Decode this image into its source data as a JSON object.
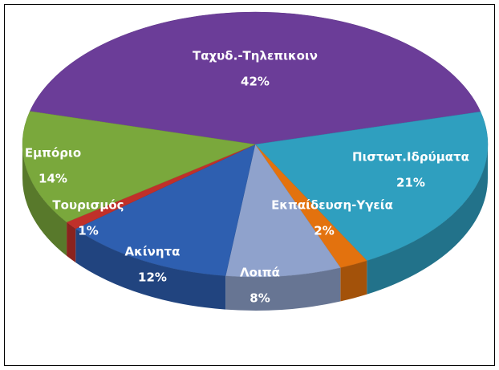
{
  "chart_data": {
    "type": "pie",
    "3d": true,
    "categories": [
      "Ταχυδ.-Τηλεπικοιν",
      "Πιστωτ.Ιδρύματα",
      "Εκπαίδευση-Υγεία",
      "Λοιπά",
      "Ακίνητα",
      "Τουρισμός",
      "Εμπόριο"
    ],
    "values": [
      42,
      21,
      2,
      8,
      12,
      1,
      14
    ],
    "value_labels": [
      "42%",
      "21%",
      "2%",
      "8%",
      "12%",
      "1%",
      "14%"
    ],
    "colors": [
      "#6b3d98",
      "#2f9fbf",
      "#e3720e",
      "#8fa2cc",
      "#2e5fb0",
      "#c0302a",
      "#7aa83c"
    ]
  }
}
